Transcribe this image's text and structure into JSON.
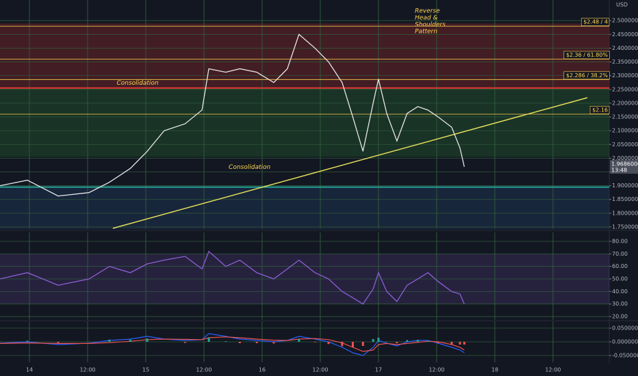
{
  "chart_data": [
    {
      "type": "line",
      "unit": "USD",
      "color": "#e8e8e8",
      "xlim": [
        -6.07,
        119.6
      ],
      "ylim": [
        1.7425,
        2.575
      ],
      "yticks": [
        {
          "value": 1.75,
          "label": "1.75000000"
        },
        {
          "value": 1.8,
          "label": "1.80000000"
        },
        {
          "value": 1.85,
          "label": "1.85000000"
        },
        {
          "value": 1.9,
          "label": "1.90000000"
        },
        {
          "value": 1.95,
          "label": "1.95000000"
        },
        {
          "value": 2.0,
          "label": "2.00000000"
        },
        {
          "value": 2.05,
          "label": "2.05000000"
        },
        {
          "value": 2.1,
          "label": "2.10000000"
        },
        {
          "value": 2.15,
          "label": "2.15000000"
        },
        {
          "value": 2.2,
          "label": "2.20000000"
        },
        {
          "value": 2.25,
          "label": "2.25000000"
        },
        {
          "value": 2.3,
          "label": "2.30000000"
        },
        {
          "value": 2.35,
          "label": "2.35000000"
        },
        {
          "value": 2.4,
          "label": "2.40000000"
        },
        {
          "value": 2.45,
          "label": "2.45000000"
        },
        {
          "value": 2.5,
          "label": "2.50000000"
        }
      ],
      "x": [
        -6.07,
        -0.42,
        5.93,
        12.3,
        16.5,
        20.8,
        24.3,
        27.8,
        32.1,
        35.6,
        37.0,
        40.5,
        43.4,
        46.9,
        50.4,
        53.2,
        55.6,
        58.9,
        61.7,
        64.5,
        66.7,
        68.8,
        70.9,
        72.0,
        73.7,
        75.8,
        77.9,
        80.1,
        82.2,
        84.3,
        87.1,
        88.8,
        89.7
      ],
      "values": [
        1.9,
        1.92,
        1.8625,
        1.875,
        1.9125,
        1.9625,
        2.025,
        2.1,
        2.125,
        2.175,
        2.325,
        2.3125,
        2.325,
        2.3125,
        2.275,
        2.325,
        2.45,
        2.4,
        2.35,
        2.275,
        2.15,
        2.025,
        2.2,
        2.2875,
        2.1625,
        2.0625,
        2.1625,
        2.1875,
        2.175,
        2.15,
        2.1125,
        2.0375,
        1.9686
      ],
      "last_label": "1.96860000",
      "countdown": "13:48",
      "zones": [
        {
          "from": 2.255,
          "to": 2.49,
          "color": "#6b2327"
        },
        {
          "from": 2.005,
          "to": 2.255,
          "color": "#1f4a2c"
        },
        {
          "from": 1.7425,
          "to": 1.895,
          "color": "#1d3350"
        }
      ],
      "levels": [
        {
          "value": 2.48,
          "label": "$2.48 / 4",
          "color": "#ffd54f"
        },
        {
          "value": 2.36,
          "label": "$2.36 / 61.80%",
          "color": "#ffd54f"
        },
        {
          "value": 2.286,
          "label": "$2.286 / 38.2%",
          "color": "#ffd54f"
        },
        {
          "value": 2.16,
          "label": "$2.16",
          "color": "#ffd54f"
        },
        {
          "value": 2.255,
          "color": "#e53935"
        },
        {
          "value": 1.895,
          "color": "#26a69a"
        }
      ],
      "trendline": {
        "x": [
          17.2,
          115.1
        ],
        "y": [
          1.745,
          2.22
        ],
        "color": "#e6e05a"
      },
      "annotations": [
        {
          "lines": [
            "Consolidation"
          ],
          "x": 18.0,
          "y": 2.2725
        },
        {
          "lines": [
            "Consolidation"
          ],
          "x": 41.1,
          "y": 1.9675
        },
        {
          "lines": [
            "Reverse",
            "Head &",
            "Shoulders",
            "Pattern"
          ],
          "x": 79.5,
          "y": 2.535
        }
      ]
    },
    {
      "type": "line",
      "color": "#8e5fd6",
      "xlim": [
        -6.07,
        119.6
      ],
      "ylim": [
        17.3,
        87.1
      ],
      "yticks": [
        {
          "value": 20,
          "label": "20.00"
        },
        {
          "value": 30,
          "label": "30.00"
        },
        {
          "value": 40,
          "label": "40.00"
        },
        {
          "value": 50,
          "label": "50.00"
        },
        {
          "value": 60,
          "label": "60.00"
        },
        {
          "value": 70,
          "label": "70.00"
        },
        {
          "value": 80,
          "label": "80.00"
        }
      ],
      "band": [
        30,
        70
      ],
      "x": [
        -6.07,
        -0.42,
        5.93,
        12.3,
        16.5,
        20.8,
        24.3,
        27.8,
        32.1,
        35.6,
        37.0,
        40.5,
        43.4,
        46.9,
        50.4,
        53.2,
        55.6,
        58.9,
        61.7,
        64.5,
        66.7,
        68.8,
        70.9,
        72.0,
        73.7,
        75.8,
        77.9,
        80.1,
        82.2,
        84.3,
        87.1,
        88.8,
        89.7
      ],
      "values": [
        50,
        55,
        45,
        50,
        60,
        55,
        62,
        65,
        68,
        58,
        72,
        60,
        65,
        55,
        50,
        58,
        65,
        55,
        50,
        40,
        35,
        30,
        42,
        55,
        40,
        32,
        45,
        50,
        55,
        48,
        40,
        38,
        30
      ]
    },
    {
      "type": "line",
      "xlim": [
        -6.07,
        119.6
      ],
      "ylim": [
        -0.075,
        0.075
      ],
      "yticks": [
        {
          "value": -0.05,
          "label": "-0.05000000"
        },
        {
          "value": 0,
          "label": "0.00000000"
        },
        {
          "value": 0.05,
          "label": "0.05000000"
        }
      ],
      "xticks": [
        {
          "value": 0,
          "label": "14"
        },
        {
          "value": 12,
          "label": "12:00"
        },
        {
          "value": 24,
          "label": "15"
        },
        {
          "value": 36,
          "label": "12:00"
        },
        {
          "value": 48,
          "label": "16"
        },
        {
          "value": 60,
          "label": "12:00"
        },
        {
          "value": 72,
          "label": "17"
        },
        {
          "value": 84,
          "label": "12:00"
        },
        {
          "value": 96,
          "label": "18"
        },
        {
          "value": 108,
          "label": "12:00"
        }
      ],
      "x": [
        -6.07,
        -0.42,
        5.93,
        12.3,
        16.5,
        20.8,
        24.3,
        27.8,
        32.1,
        35.6,
        37.0,
        40.5,
        43.4,
        46.9,
        50.4,
        53.2,
        55.6,
        58.9,
        61.7,
        64.5,
        66.7,
        68.8,
        70.9,
        72.0,
        73.7,
        75.8,
        77.9,
        80.1,
        82.2,
        84.3,
        87.1,
        88.8,
        89.7
      ],
      "up_color": "#26a69a",
      "down_color": "#ef5350",
      "series": [
        {
          "color": "#2962ff",
          "values": [
            -0.005,
            0,
            -0.01,
            -0.005,
            0.005,
            0.01,
            0.02,
            0.01,
            0.005,
            0.008,
            0.03,
            0.02,
            0.01,
            0.005,
            0,
            0.005,
            0.02,
            0.01,
            0,
            -0.02,
            -0.04,
            -0.05,
            -0.02,
            0.005,
            -0.005,
            -0.015,
            0,
            0.005,
            0.005,
            -0.005,
            -0.02,
            -0.03,
            -0.04
          ]
        },
        {
          "color": "#ef5350",
          "values": [
            -0.006,
            -0.004,
            -0.006,
            -0.006,
            -0.003,
            0.002,
            0.008,
            0.01,
            0.009,
            0.008,
            0.015,
            0.018,
            0.015,
            0.01,
            0.006,
            0.005,
            0.01,
            0.012,
            0.008,
            -0.004,
            -0.02,
            -0.035,
            -0.03,
            -0.01,
            -0.006,
            -0.01,
            -0.006,
            -0.002,
            0.002,
            0,
            -0.01,
            -0.02,
            -0.03
          ]
        },
        {
          "type": "bar",
          "values": [
            0.001,
            0.004,
            -0.004,
            0.001,
            0.008,
            0.008,
            0.012,
            0,
            -0.004,
            0,
            0.015,
            0.002,
            -0.005,
            -0.005,
            -0.006,
            0,
            0.01,
            -0.002,
            -0.008,
            -0.016,
            -0.02,
            -0.015,
            0.01,
            0.015,
            0.001,
            -0.005,
            0.006,
            0.007,
            0.003,
            -0.005,
            -0.01,
            -0.01,
            -0.01
          ]
        }
      ]
    }
  ]
}
